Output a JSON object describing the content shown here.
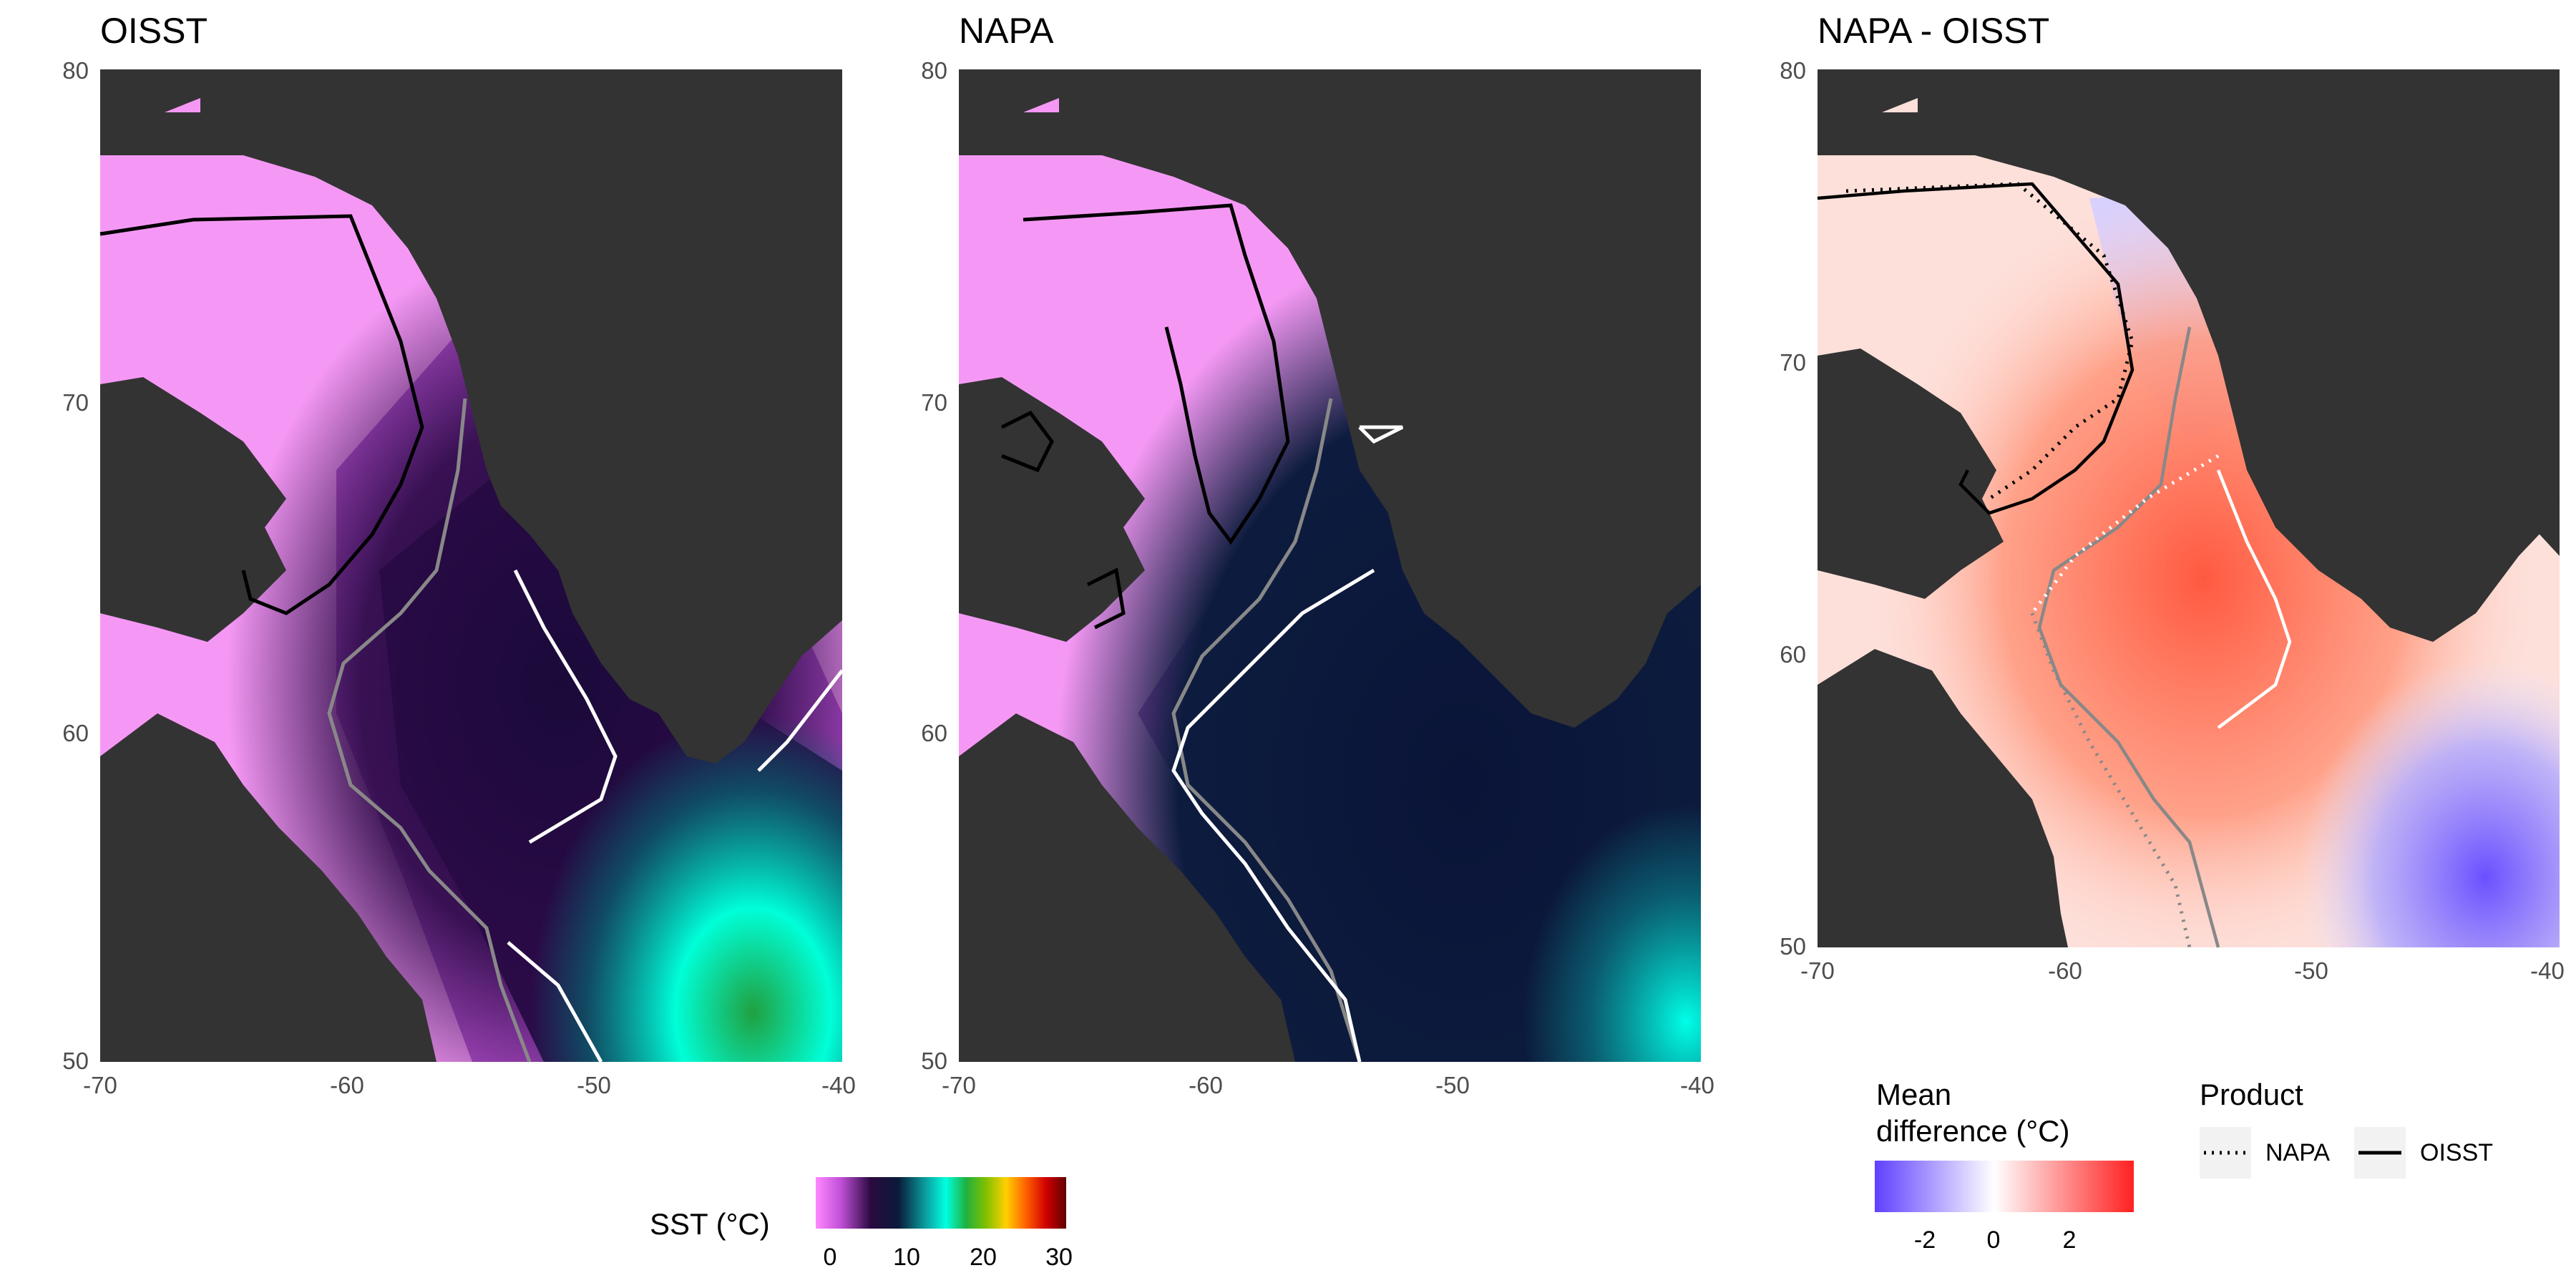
{
  "panels": [
    {
      "title": "OISST",
      "kind": "sst"
    },
    {
      "title": "NAPA",
      "kind": "sst"
    },
    {
      "title": "NAPA - OISST",
      "kind": "diff"
    }
  ],
  "axes": {
    "x_ticks": [
      "-70",
      "-60",
      "-50",
      "-40"
    ],
    "y_ticks": [
      "50",
      "60",
      "70",
      "80"
    ],
    "x_range": [
      -70,
      -40
    ],
    "y_range": [
      50,
      80
    ]
  },
  "legend_sst": {
    "title": "SST (°C)",
    "ticks": [
      "0",
      "10",
      "20",
      "30"
    ],
    "range": [
      0,
      30
    ],
    "colors": [
      "#ff88ff",
      "#c050d8",
      "#2a0a40",
      "#0a1a3a",
      "#0aa0a0",
      "#00ffe0",
      "#20b040",
      "#80c000",
      "#ffd000",
      "#ff6000",
      "#d00000",
      "#600000"
    ]
  },
  "legend_diff": {
    "title_line1": "Mean",
    "title_line2": "difference (°C)",
    "ticks": [
      "-2",
      "0",
      "2"
    ],
    "range": [
      -3,
      3.5
    ],
    "colors": [
      "#6040ff",
      "#ffffff",
      "#ff2020"
    ]
  },
  "legend_product": {
    "title": "Product",
    "items": [
      "NAPA",
      "OISST"
    ]
  },
  "colors": {
    "land": "#333333",
    "ice_pink": "#f59af5",
    "deep_ocean": "#0d1030",
    "contour_black": "#000000",
    "contour_gray": "#888888",
    "contour_white": "#ffffff"
  }
}
